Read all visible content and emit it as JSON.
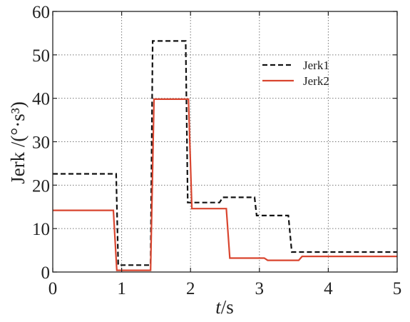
{
  "chart_data": {
    "type": "line",
    "title": "",
    "xlabel": {
      "italic": "t",
      "rest": "/s"
    },
    "ylabel": "Jerk /(°·s³)",
    "xlim": [
      0,
      5
    ],
    "ylim": [
      0,
      60
    ],
    "xticks": [
      "0",
      "1",
      "2",
      "3",
      "4",
      "5"
    ],
    "yticks": [
      "0",
      "10",
      "20",
      "30",
      "40",
      "50",
      "60"
    ],
    "grid": true,
    "legend_position": "top-right",
    "series": [
      {
        "name": "Jerk1",
        "color": "#111111",
        "style": "dashed",
        "x": [
          0.0,
          0.92,
          0.95,
          1.42,
          1.45,
          1.93,
          1.96,
          2.42,
          2.47,
          2.93,
          2.96,
          3.42,
          3.47,
          5.0
        ],
        "y": [
          22.6,
          22.6,
          1.6,
          1.6,
          53.2,
          53.2,
          16.0,
          16.0,
          17.2,
          17.2,
          13.0,
          13.0,
          4.6,
          4.6
        ]
      },
      {
        "name": "Jerk2",
        "color": "#d9452f",
        "style": "solid",
        "x": [
          0.0,
          0.88,
          0.93,
          1.42,
          1.47,
          1.97,
          2.02,
          2.52,
          2.57,
          3.07,
          3.12,
          3.57,
          3.62,
          5.0
        ],
        "y": [
          14.2,
          14.2,
          0.4,
          0.4,
          39.8,
          39.8,
          14.6,
          14.6,
          3.2,
          3.2,
          2.7,
          2.7,
          3.6,
          3.6
        ]
      }
    ]
  }
}
